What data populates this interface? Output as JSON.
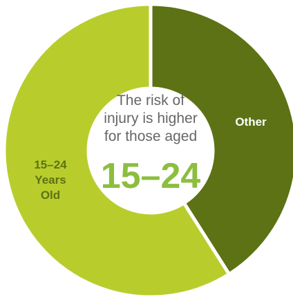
{
  "chart_data": {
    "type": "pie",
    "donut": true,
    "slices": [
      {
        "label": "Other",
        "value": 41,
        "color": "#5c7214",
        "text_color": "#ffffff"
      },
      {
        "label": "15–24 Years Old",
        "label_lines": [
          "15–24",
          "Years",
          "Old"
        ],
        "value": 59,
        "color": "#b8cd2c",
        "text_color": "#5c7214"
      }
    ],
    "center_text": {
      "lines": [
        "The risk of",
        "injury is higher",
        "for those aged"
      ],
      "highlight": "15–24",
      "text_color": "#666666",
      "highlight_color": "#8cbe3f"
    },
    "separator_color": "#ffffff",
    "legend": "none",
    "grid": false
  }
}
